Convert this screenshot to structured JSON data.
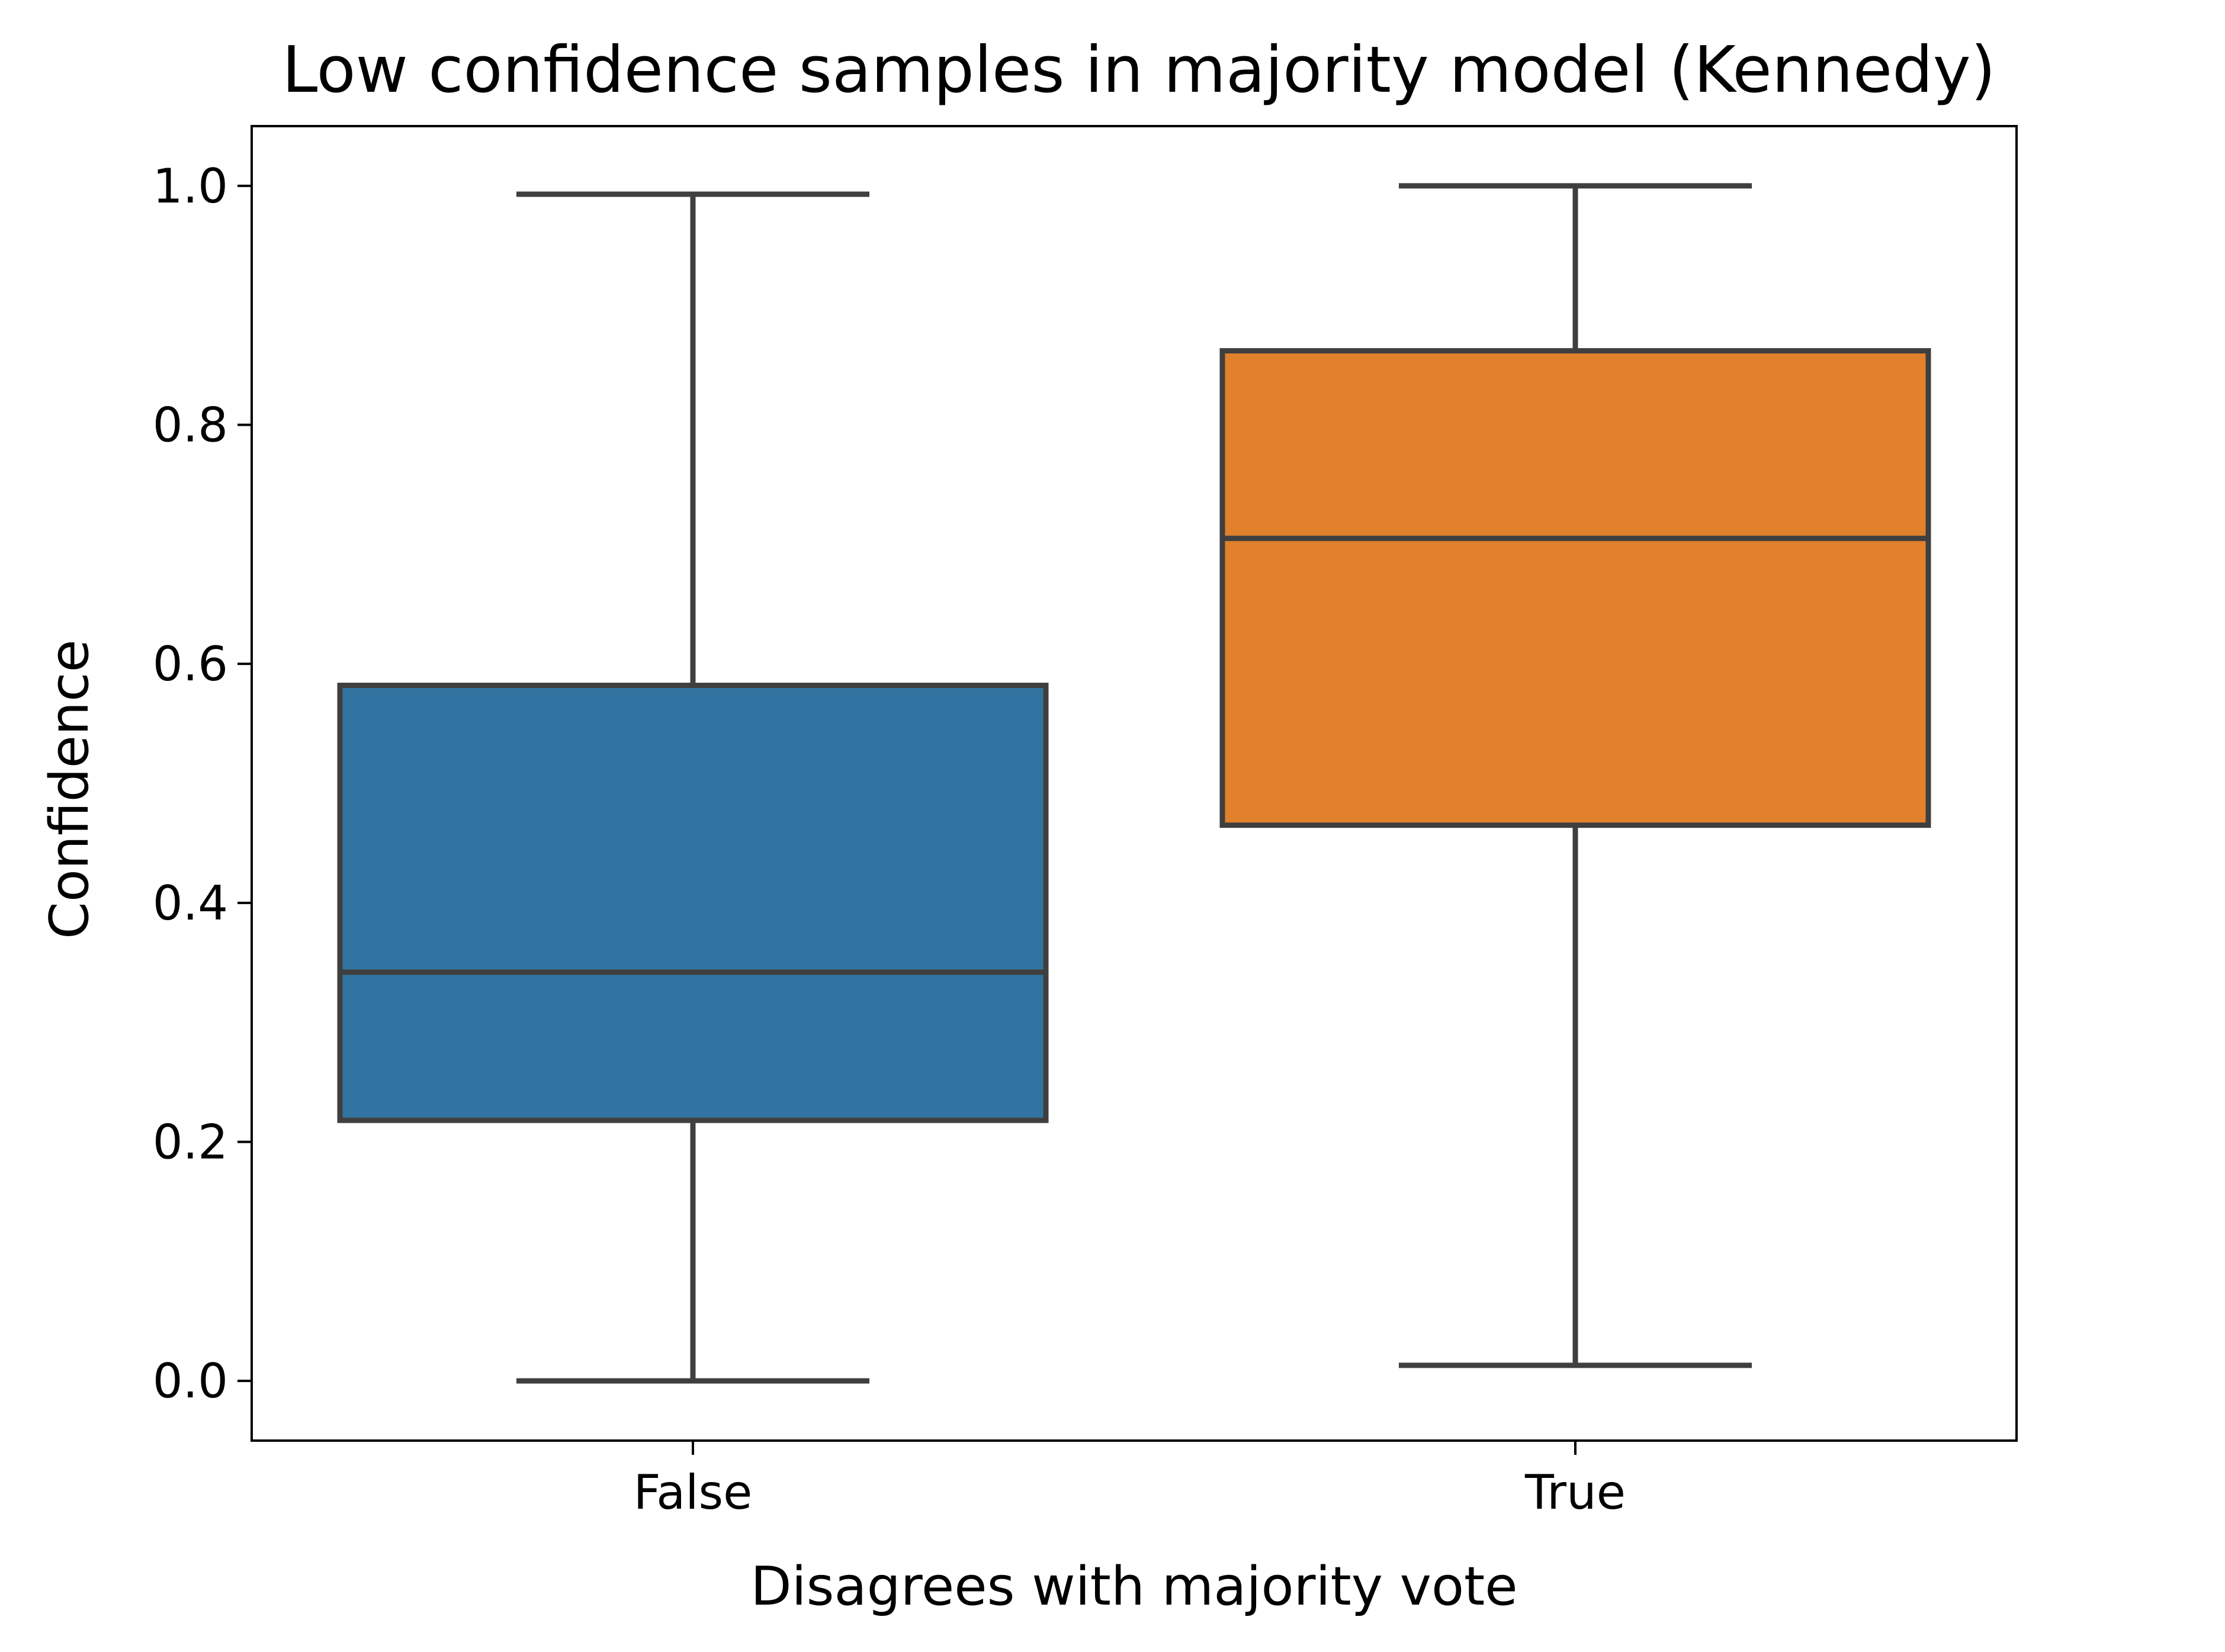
{
  "chart_data": {
    "type": "box",
    "title": "Low confidence samples in majority model (Kennedy)",
    "xlabel": "Disagrees with majority vote",
    "ylabel": "Confidence",
    "categories": [
      "False",
      "True"
    ],
    "ylim": [
      -0.05,
      1.05
    ],
    "yticks": [
      "0.0",
      "0.2",
      "0.4",
      "0.6",
      "0.8",
      "1.0"
    ],
    "boxes": [
      {
        "category": "False",
        "min": 0.0,
        "q1": 0.218,
        "median": 0.342,
        "q3": 0.582,
        "max": 0.993,
        "color": "#3274a1"
      },
      {
        "category": "True",
        "min": 0.013,
        "q1": 0.465,
        "median": 0.705,
        "q3": 0.862,
        "max": 1.0,
        "color": "#e1812c"
      }
    ],
    "grid": false,
    "legend": "none",
    "line_color": "#3f3f3f"
  }
}
